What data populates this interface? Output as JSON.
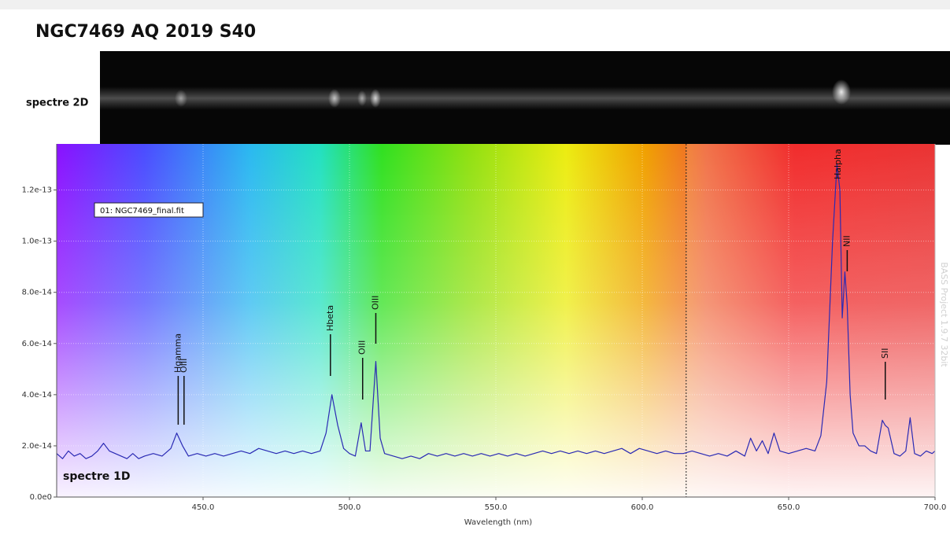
{
  "chart_data": {
    "type": "line",
    "title": "NGC7469 AQ 2019 S40",
    "image_label": "spectre 2D",
    "plot_label": "spectre 1D",
    "x_label": "Wavelength (nm)",
    "watermark": "BASS Project 1.9.7 32bit",
    "xlim": [
      400,
      700
    ],
    "ylim": [
      0,
      1.38e-13
    ],
    "grid": true,
    "xticks": [
      {
        "value": 450,
        "label": "450.0"
      },
      {
        "value": 500,
        "label": "500.0"
      },
      {
        "value": 550,
        "label": "550.0"
      },
      {
        "value": 600,
        "label": "600.0"
      },
      {
        "value": 650,
        "label": "650.0"
      },
      {
        "value": 700,
        "label": "700.0"
      }
    ],
    "yticks": [
      {
        "value": 0,
        "label": "0.0e0"
      },
      {
        "value": 2e-14,
        "label": "2.0e-14"
      },
      {
        "value": 4e-14,
        "label": "4.0e-14"
      },
      {
        "value": 6e-14,
        "label": "6.0e-14"
      },
      {
        "value": 8e-14,
        "label": "8.0e-14"
      },
      {
        "value": 1e-13,
        "label": "1.0e-13"
      },
      {
        "value": 1.2e-13,
        "label": "1.2e-13"
      }
    ],
    "vline": 615,
    "x": [
      400,
      402,
      404,
      406,
      408,
      410,
      412,
      414,
      416,
      418,
      420,
      422,
      424,
      426,
      428,
      430,
      433,
      436,
      439,
      441,
      443,
      445,
      448,
      451,
      454,
      457,
      460,
      463,
      466,
      469,
      472,
      475,
      478,
      481,
      484,
      487,
      490,
      492,
      494,
      496,
      498,
      500,
      502,
      504,
      505.5,
      507,
      509,
      510.5,
      512,
      515,
      518,
      521,
      524,
      527,
      530,
      533,
      536,
      539,
      542,
      545,
      548,
      551,
      554,
      557,
      560,
      563,
      566,
      569,
      572,
      575,
      578,
      581,
      584,
      587,
      590,
      593,
      596,
      599,
      602,
      605,
      608,
      611,
      614,
      617,
      620,
      623,
      626,
      629,
      632,
      635,
      637,
      639,
      641,
      643,
      645,
      647,
      650,
      653,
      656,
      659,
      661,
      663,
      665,
      666.5,
      667.5,
      668.3,
      669.2,
      670,
      671,
      672,
      674,
      676,
      678,
      680,
      682,
      683,
      684,
      686,
      688,
      690,
      691.5,
      693,
      695,
      697,
      699,
      700
    ],
    "series": [
      {
        "name": "01: NGC7469_final.fit",
        "color": "#2a2ab4",
        "values": [
          1.7e-14,
          1.5e-14,
          1.8e-14,
          1.6e-14,
          1.7e-14,
          1.5e-14,
          1.6e-14,
          1.8e-14,
          2.1e-14,
          1.8e-14,
          1.7e-14,
          1.6e-14,
          1.5e-14,
          1.7e-14,
          1.5e-14,
          1.6e-14,
          1.7e-14,
          1.6e-14,
          1.9e-14,
          2.5e-14,
          2e-14,
          1.6e-14,
          1.7e-14,
          1.6e-14,
          1.7e-14,
          1.6e-14,
          1.7e-14,
          1.8e-14,
          1.7e-14,
          1.9e-14,
          1.8e-14,
          1.7e-14,
          1.8e-14,
          1.7e-14,
          1.8e-14,
          1.7e-14,
          1.8e-14,
          2.5e-14,
          4e-14,
          2.8e-14,
          1.9e-14,
          1.7e-14,
          1.6e-14,
          2.9e-14,
          1.8e-14,
          1.8e-14,
          5.3e-14,
          2.3e-14,
          1.7e-14,
          1.6e-14,
          1.5e-14,
          1.6e-14,
          1.5e-14,
          1.7e-14,
          1.6e-14,
          1.7e-14,
          1.6e-14,
          1.7e-14,
          1.6e-14,
          1.7e-14,
          1.6e-14,
          1.7e-14,
          1.6e-14,
          1.7e-14,
          1.6e-14,
          1.7e-14,
          1.8e-14,
          1.7e-14,
          1.8e-14,
          1.7e-14,
          1.8e-14,
          1.7e-14,
          1.8e-14,
          1.7e-14,
          1.8e-14,
          1.9e-14,
          1.7e-14,
          1.9e-14,
          1.8e-14,
          1.7e-14,
          1.8e-14,
          1.7e-14,
          1.7e-14,
          1.8e-14,
          1.7e-14,
          1.6e-14,
          1.7e-14,
          1.6e-14,
          1.8e-14,
          1.6e-14,
          2.3e-14,
          1.8e-14,
          2.2e-14,
          1.7e-14,
          2.5e-14,
          1.8e-14,
          1.7e-14,
          1.8e-14,
          1.9e-14,
          1.8e-14,
          2.4e-14,
          4.5e-14,
          1e-13,
          1.3e-13,
          1.2e-13,
          7e-14,
          8.8e-14,
          7.5e-14,
          4e-14,
          2.5e-14,
          2e-14,
          2e-14,
          1.8e-14,
          1.7e-14,
          3e-14,
          2.8e-14,
          2.7e-14,
          1.7e-14,
          1.6e-14,
          1.8e-14,
          3.1e-14,
          1.7e-14,
          1.6e-14,
          1.8e-14,
          1.7e-14,
          1.8e-14
        ]
      }
    ],
    "annotations": [
      {
        "text": "Hgamma",
        "x": 441.5
      },
      {
        "text": "OIII",
        "x": 443.5
      },
      {
        "text": "Hbeta",
        "x": 493.5
      },
      {
        "text": "OIII",
        "x": 504.5
      },
      {
        "text": "OIII",
        "x": 509
      },
      {
        "text": "Halpha",
        "x": 667
      },
      {
        "text": "NII",
        "x": 670
      },
      {
        "text": "SII",
        "x": 683
      }
    ]
  }
}
